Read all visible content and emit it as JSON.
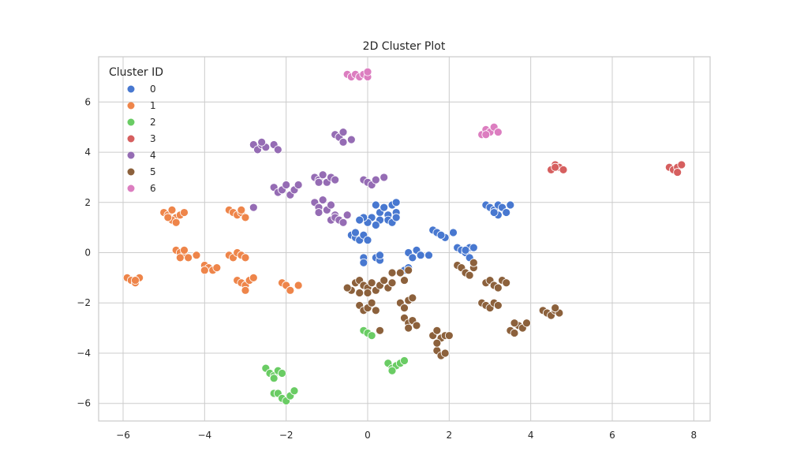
{
  "chart_data": {
    "type": "scatter",
    "title": "2D Cluster Plot",
    "xlabel": "",
    "ylabel": "",
    "xlim": [
      -6.6,
      8.4
    ],
    "ylim": [
      -6.7,
      7.8
    ],
    "x_ticks": [
      -6,
      -4,
      -2,
      0,
      2,
      4,
      6,
      8
    ],
    "y_ticks": [
      -6,
      -4,
      -2,
      0,
      2,
      4,
      6
    ],
    "x_tick_labels": [
      "−6",
      "−4",
      "−2",
      "0",
      "2",
      "4",
      "6",
      "8"
    ],
    "y_tick_labels": [
      "−6",
      "−4",
      "−2",
      "0",
      "2",
      "4",
      "6"
    ],
    "grid": true,
    "legend": {
      "title": "Cluster ID",
      "placement": "top-left"
    },
    "series": [
      {
        "name": "0",
        "color": "#4878d0",
        "points": [
          [
            0.2,
            1.9
          ],
          [
            0.3,
            1.6
          ],
          [
            0.4,
            1.8
          ],
          [
            0.5,
            1.5
          ],
          [
            0.6,
            1.9
          ],
          [
            0.7,
            1.6
          ],
          [
            0.5,
            1.3
          ],
          [
            0.3,
            1.3
          ],
          [
            0.1,
            1.4
          ],
          [
            0.0,
            1.2
          ],
          [
            -0.1,
            1.4
          ],
          [
            -0.2,
            1.3
          ],
          [
            0.2,
            1.1
          ],
          [
            0.6,
            1.2
          ],
          [
            0.7,
            1.4
          ],
          [
            0.7,
            2.0
          ],
          [
            -0.4,
            0.7
          ],
          [
            -0.3,
            0.6
          ],
          [
            -0.2,
            0.5
          ],
          [
            -0.1,
            0.7
          ],
          [
            0.0,
            0.5
          ],
          [
            -0.3,
            0.8
          ],
          [
            -0.1,
            -0.2
          ],
          [
            -0.1,
            -0.4
          ],
          [
            0.2,
            -0.2
          ],
          [
            0.3,
            -0.3
          ],
          [
            0.3,
            -0.1
          ],
          [
            1.0,
            0.0
          ],
          [
            1.1,
            -0.2
          ],
          [
            1.2,
            0.1
          ],
          [
            1.3,
            -0.1
          ],
          [
            1.5,
            -0.1
          ],
          [
            0.9,
            -0.7
          ],
          [
            1.0,
            -0.6
          ],
          [
            1.6,
            0.9
          ],
          [
            1.7,
            0.8
          ],
          [
            1.9,
            0.6
          ],
          [
            1.8,
            0.7
          ],
          [
            2.1,
            0.8
          ],
          [
            2.2,
            0.2
          ],
          [
            2.3,
            0.1
          ],
          [
            2.4,
            0.0
          ],
          [
            2.5,
            0.2
          ],
          [
            2.6,
            0.2
          ],
          [
            2.5,
            -0.2
          ],
          [
            2.4,
            0.1
          ],
          [
            2.9,
            1.9
          ],
          [
            3.0,
            1.8
          ],
          [
            3.1,
            1.7
          ],
          [
            3.2,
            1.9
          ],
          [
            3.3,
            1.8
          ],
          [
            3.4,
            1.6
          ],
          [
            3.5,
            1.9
          ],
          [
            3.2,
            1.5
          ],
          [
            3.1,
            1.6
          ]
        ]
      },
      {
        "name": "1",
        "color": "#ee854a",
        "points": [
          [
            -5.0,
            1.6
          ],
          [
            -4.9,
            1.5
          ],
          [
            -4.8,
            1.7
          ],
          [
            -4.7,
            1.4
          ],
          [
            -4.6,
            1.5
          ],
          [
            -4.5,
            1.6
          ],
          [
            -4.8,
            1.3
          ],
          [
            -4.7,
            1.2
          ],
          [
            -4.9,
            1.4
          ],
          [
            -4.7,
            0.1
          ],
          [
            -4.6,
            0.0
          ],
          [
            -4.5,
            -0.1
          ],
          [
            -4.5,
            0.1
          ],
          [
            -4.4,
            -0.2
          ],
          [
            -4.2,
            -0.1
          ],
          [
            -4.6,
            -0.2
          ],
          [
            -4.0,
            -0.5
          ],
          [
            -3.9,
            -0.6
          ],
          [
            -3.8,
            -0.7
          ],
          [
            -3.7,
            -0.6
          ],
          [
            -4.0,
            -0.7
          ],
          [
            -3.4,
            1.7
          ],
          [
            -3.3,
            1.6
          ],
          [
            -3.2,
            1.5
          ],
          [
            -3.1,
            1.6
          ],
          [
            -3.0,
            1.4
          ],
          [
            -3.1,
            1.7
          ],
          [
            -3.4,
            -0.1
          ],
          [
            -3.3,
            -0.2
          ],
          [
            -3.2,
            0.0
          ],
          [
            -3.1,
            -0.1
          ],
          [
            -3.0,
            -0.2
          ],
          [
            -3.2,
            -1.1
          ],
          [
            -3.1,
            -1.2
          ],
          [
            -3.0,
            -1.3
          ],
          [
            -2.9,
            -1.1
          ],
          [
            -2.8,
            -1.0
          ],
          [
            -3.0,
            -1.5
          ],
          [
            -2.1,
            -1.2
          ],
          [
            -2.0,
            -1.3
          ],
          [
            -1.9,
            -1.5
          ],
          [
            -1.7,
            -1.3
          ],
          [
            -5.9,
            -1.0
          ],
          [
            -5.8,
            -1.1
          ],
          [
            -5.7,
            -1.2
          ],
          [
            -5.6,
            -1.0
          ],
          [
            -5.7,
            -1.1
          ]
        ]
      },
      {
        "name": "2",
        "color": "#6acc64",
        "points": [
          [
            -0.1,
            -3.1
          ],
          [
            0.0,
            -3.2
          ],
          [
            0.1,
            -3.3
          ],
          [
            0.5,
            -4.4
          ],
          [
            0.6,
            -4.6
          ],
          [
            0.7,
            -4.5
          ],
          [
            0.8,
            -4.4
          ],
          [
            0.6,
            -4.7
          ],
          [
            0.9,
            -4.3
          ],
          [
            -2.5,
            -4.6
          ],
          [
            -2.4,
            -4.8
          ],
          [
            -2.3,
            -4.9
          ],
          [
            -2.2,
            -4.7
          ],
          [
            -2.1,
            -4.8
          ],
          [
            -2.3,
            -5.0
          ],
          [
            -2.3,
            -5.6
          ],
          [
            -2.2,
            -5.6
          ],
          [
            -2.1,
            -5.8
          ],
          [
            -2.0,
            -5.9
          ],
          [
            -1.9,
            -5.7
          ],
          [
            -1.8,
            -5.5
          ]
        ]
      },
      {
        "name": "3",
        "color": "#d65f5f",
        "points": [
          [
            4.5,
            3.3
          ],
          [
            4.6,
            3.5
          ],
          [
            4.7,
            3.4
          ],
          [
            4.8,
            3.3
          ],
          [
            4.6,
            3.4
          ],
          [
            7.4,
            3.4
          ],
          [
            7.5,
            3.3
          ],
          [
            7.6,
            3.4
          ],
          [
            7.7,
            3.5
          ],
          [
            7.6,
            3.2
          ]
        ]
      },
      {
        "name": "4",
        "color": "#956cb4",
        "points": [
          [
            -2.8,
            4.3
          ],
          [
            -2.7,
            4.1
          ],
          [
            -2.6,
            4.3
          ],
          [
            -2.5,
            4.2
          ],
          [
            -2.3,
            4.3
          ],
          [
            -2.2,
            4.1
          ],
          [
            -2.6,
            4.4
          ],
          [
            -0.8,
            4.7
          ],
          [
            -0.7,
            4.6
          ],
          [
            -0.6,
            4.8
          ],
          [
            -0.4,
            4.5
          ],
          [
            -0.6,
            4.4
          ],
          [
            -2.3,
            2.6
          ],
          [
            -2.2,
            2.4
          ],
          [
            -2.1,
            2.5
          ],
          [
            -2.0,
            2.7
          ],
          [
            -1.9,
            2.3
          ],
          [
            -1.8,
            2.5
          ],
          [
            -1.7,
            2.7
          ],
          [
            -2.8,
            1.8
          ],
          [
            -1.3,
            3.0
          ],
          [
            -1.2,
            2.9
          ],
          [
            -1.1,
            3.1
          ],
          [
            -1.0,
            2.8
          ],
          [
            -0.9,
            3.0
          ],
          [
            -0.8,
            2.9
          ],
          [
            -1.2,
            2.8
          ],
          [
            -0.1,
            2.9
          ],
          [
            0.0,
            2.8
          ],
          [
            0.1,
            2.7
          ],
          [
            0.2,
            2.9
          ],
          [
            0.4,
            3.0
          ],
          [
            -1.3,
            2.0
          ],
          [
            -1.2,
            1.8
          ],
          [
            -1.1,
            2.1
          ],
          [
            -1.0,
            1.7
          ],
          [
            -0.9,
            1.9
          ],
          [
            -1.2,
            1.6
          ],
          [
            -0.8,
            1.5
          ],
          [
            -0.9,
            1.3
          ],
          [
            -0.8,
            1.4
          ],
          [
            -0.7,
            1.3
          ],
          [
            -0.5,
            1.5
          ],
          [
            -0.6,
            1.2
          ]
        ]
      },
      {
        "name": "5",
        "color": "#8c613c",
        "points": [
          [
            -0.3,
            -1.2
          ],
          [
            -0.2,
            -1.1
          ],
          [
            -0.1,
            -1.3
          ],
          [
            0.0,
            -1.4
          ],
          [
            0.1,
            -1.2
          ],
          [
            0.2,
            -1.5
          ],
          [
            0.3,
            -1.3
          ],
          [
            0.4,
            -1.1
          ],
          [
            0.5,
            -1.4
          ],
          [
            0.6,
            -1.2
          ],
          [
            -0.4,
            -1.5
          ],
          [
            -0.2,
            -1.6
          ],
          [
            0.0,
            -1.6
          ],
          [
            0.6,
            -0.8
          ],
          [
            -0.5,
            -1.4
          ],
          [
            -0.2,
            -2.1
          ],
          [
            -0.1,
            -2.3
          ],
          [
            0.0,
            -2.2
          ],
          [
            0.1,
            -2.0
          ],
          [
            0.2,
            -2.3
          ],
          [
            0.8,
            -2.0
          ],
          [
            0.9,
            -2.2
          ],
          [
            1.0,
            -1.9
          ],
          [
            1.1,
            -1.8
          ],
          [
            0.9,
            -1.1
          ],
          [
            1.0,
            -0.7
          ],
          [
            0.8,
            -0.8
          ],
          [
            0.9,
            -2.6
          ],
          [
            1.0,
            -2.8
          ],
          [
            1.1,
            -2.7
          ],
          [
            1.2,
            -2.9
          ],
          [
            1.0,
            -3.0
          ],
          [
            0.3,
            -3.1
          ],
          [
            1.6,
            -3.3
          ],
          [
            1.7,
            -3.1
          ],
          [
            1.8,
            -3.4
          ],
          [
            1.9,
            -3.3
          ],
          [
            2.0,
            -3.3
          ],
          [
            1.7,
            -3.9
          ],
          [
            1.8,
            -4.1
          ],
          [
            1.9,
            -4.0
          ],
          [
            1.7,
            -3.6
          ],
          [
            2.2,
            -0.5
          ],
          [
            2.3,
            -0.6
          ],
          [
            2.4,
            -0.8
          ],
          [
            2.5,
            -0.9
          ],
          [
            2.6,
            -0.6
          ],
          [
            2.6,
            -0.4
          ],
          [
            2.9,
            -1.2
          ],
          [
            3.0,
            -1.1
          ],
          [
            3.1,
            -1.3
          ],
          [
            3.2,
            -1.4
          ],
          [
            3.3,
            -1.1
          ],
          [
            3.4,
            -1.2
          ],
          [
            2.8,
            -2.0
          ],
          [
            2.9,
            -2.1
          ],
          [
            3.0,
            -2.2
          ],
          [
            3.1,
            -2.0
          ],
          [
            3.2,
            -2.1
          ],
          [
            3.5,
            -3.1
          ],
          [
            3.6,
            -3.2
          ],
          [
            3.7,
            -2.9
          ],
          [
            3.8,
            -3.0
          ],
          [
            3.9,
            -2.8
          ],
          [
            3.6,
            -2.8
          ],
          [
            4.3,
            -2.3
          ],
          [
            4.4,
            -2.4
          ],
          [
            4.5,
            -2.5
          ],
          [
            4.6,
            -2.3
          ],
          [
            4.7,
            -2.4
          ],
          [
            4.6,
            -2.2
          ]
        ]
      },
      {
        "name": "6",
        "color": "#dc7ec0",
        "points": [
          [
            -0.5,
            7.1
          ],
          [
            -0.4,
            7.0
          ],
          [
            -0.3,
            7.1
          ],
          [
            -0.2,
            7.0
          ],
          [
            -0.1,
            7.1
          ],
          [
            0.0,
            7.0
          ],
          [
            0.0,
            7.2
          ],
          [
            2.8,
            4.7
          ],
          [
            2.9,
            4.9
          ],
          [
            3.0,
            4.8
          ],
          [
            3.1,
            5.0
          ],
          [
            3.2,
            4.8
          ],
          [
            2.9,
            4.7
          ]
        ]
      }
    ]
  }
}
